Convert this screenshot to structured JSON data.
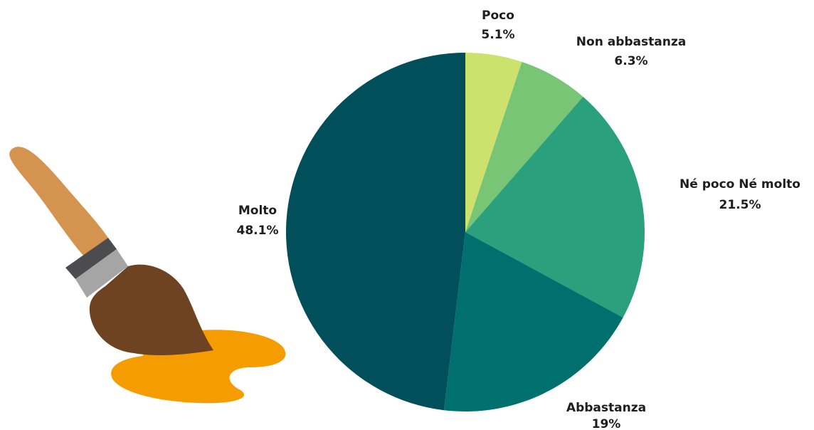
{
  "chart_data": {
    "type": "pie",
    "start": "top",
    "direction": "clockwise",
    "slices": [
      {
        "label": "Poco",
        "value": 5.1,
        "display": "5.1%",
        "color": "#cde26d"
      },
      {
        "label": "Non abbastanza",
        "value": 6.3,
        "display": "6.3%",
        "color": "#78c575"
      },
      {
        "label": "Né poco Né molto",
        "value": 21.5,
        "display": "21.5%",
        "color": "#2aa07c"
      },
      {
        "label": "Abbastanza",
        "value": 19,
        "display": "19%",
        "color": "#00706f"
      },
      {
        "label": "Molto",
        "value": 48.1,
        "display": "48.1%",
        "color": "#004f5b"
      }
    ]
  },
  "illustration": {
    "name": "paintbrush-icon",
    "colors": {
      "handle": "#d59350",
      "band_dark": "#4c4c4e",
      "band_light": "#a5a5a5",
      "bristles": "#6d4321",
      "paint": "#f59c00"
    }
  }
}
